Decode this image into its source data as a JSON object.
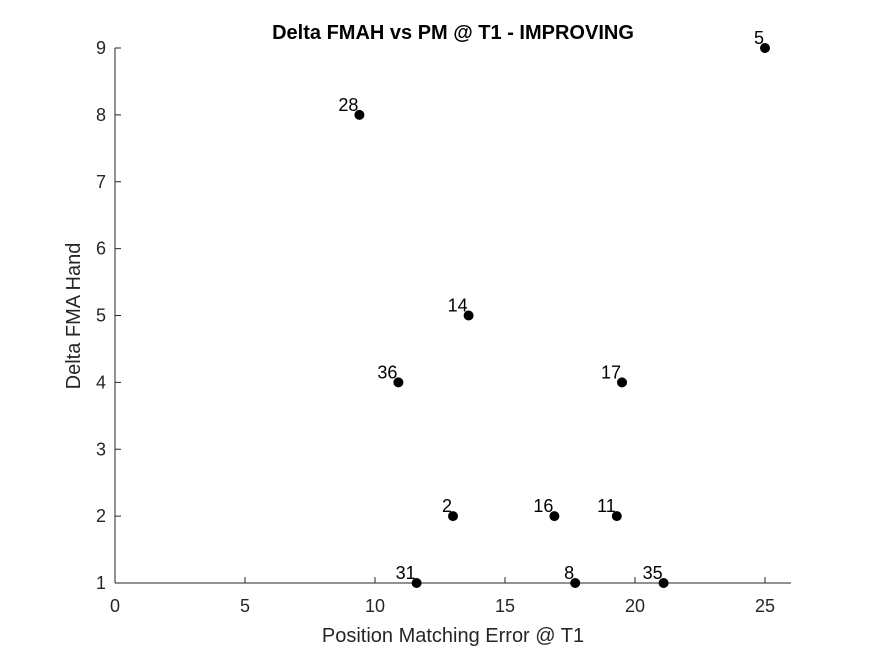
{
  "chart_data": {
    "type": "scatter",
    "title": "Delta FMAH vs PM @ T1 - IMPROVING",
    "xlabel": "Position Matching Error @ T1",
    "ylabel": "Delta FMA Hand",
    "xlim": [
      0,
      26
    ],
    "ylim": [
      1,
      9
    ],
    "xticks": [
      0,
      5,
      10,
      15,
      20,
      25
    ],
    "yticks": [
      1,
      2,
      3,
      4,
      5,
      6,
      7,
      8,
      9
    ],
    "grid": false,
    "box": false,
    "marker_color": "#000000",
    "points": [
      {
        "label": "5",
        "x": 25.0,
        "y": 9
      },
      {
        "label": "28",
        "x": 9.4,
        "y": 8
      },
      {
        "label": "14",
        "x": 13.6,
        "y": 5
      },
      {
        "label": "36",
        "x": 10.9,
        "y": 4
      },
      {
        "label": "17",
        "x": 19.5,
        "y": 4
      },
      {
        "label": "2",
        "x": 13.0,
        "y": 2
      },
      {
        "label": "16",
        "x": 16.9,
        "y": 2
      },
      {
        "label": "11",
        "x": 19.3,
        "y": 2
      },
      {
        "label": "31",
        "x": 11.6,
        "y": 1
      },
      {
        "label": "8",
        "x": 17.7,
        "y": 1
      },
      {
        "label": "35",
        "x": 21.1,
        "y": 1
      }
    ]
  }
}
